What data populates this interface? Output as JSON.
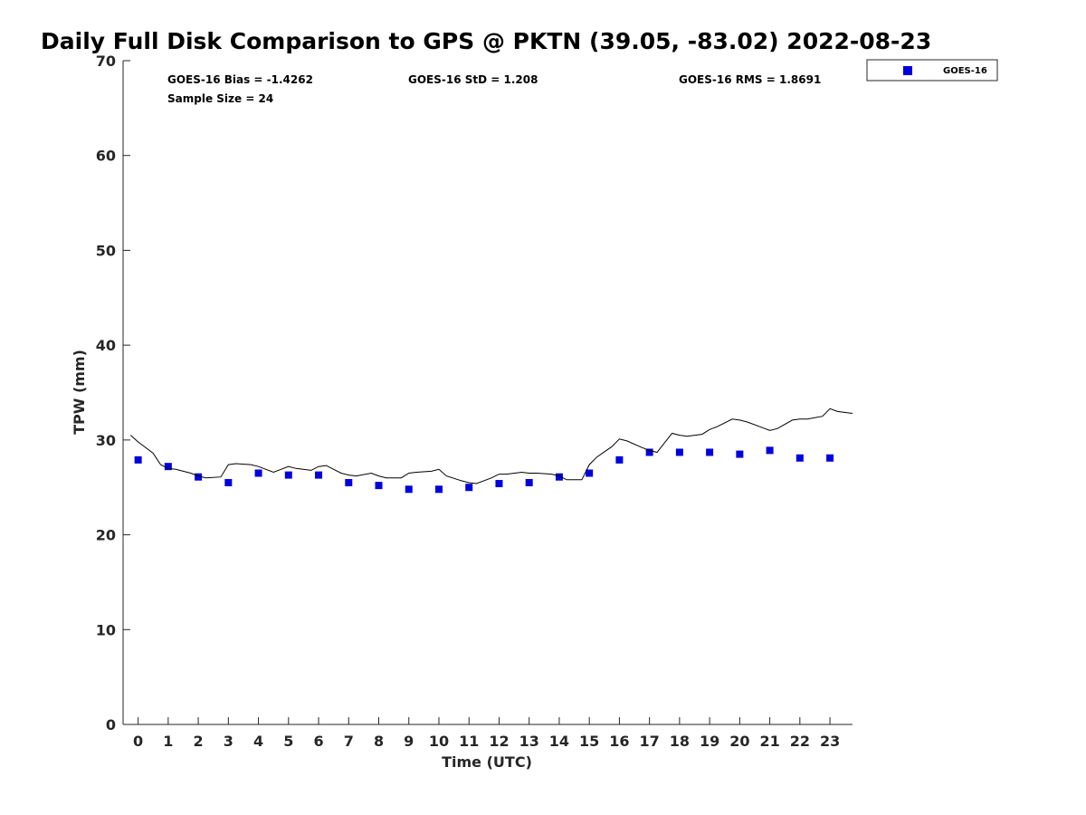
{
  "chart_data": {
    "type": "scatter",
    "title": "Daily Full Disk Comparison to GPS @ PKTN (39.05, -83.02) 2022-08-23",
    "xlabel": "Time (UTC)",
    "ylabel": "TPW (mm)",
    "xlim": [
      -0.5,
      23.75
    ],
    "ylim": [
      0,
      70
    ],
    "x_ticks": [
      0,
      1,
      2,
      3,
      4,
      5,
      6,
      7,
      8,
      9,
      10,
      11,
      12,
      13,
      14,
      15,
      16,
      17,
      18,
      19,
      20,
      21,
      22,
      23
    ],
    "y_ticks": [
      0,
      10,
      20,
      30,
      40,
      50,
      60,
      70
    ],
    "grid": false,
    "legend_position": "top-right outside",
    "stats": {
      "bias": "GOES-16 Bias = -1.4262",
      "std": "GOES-16 StD = 1.208",
      "rms": "GOES-16 RMS = 1.8691",
      "sample": "Sample Size = 24"
    },
    "series": [
      {
        "name": "GOES-16",
        "marker": "square",
        "color": "#0000dd",
        "x": [
          0,
          1,
          2,
          3,
          4,
          5,
          6,
          7,
          8,
          9,
          10,
          11,
          12,
          13,
          14,
          15,
          16,
          17,
          18,
          19,
          20,
          21,
          22,
          23
        ],
        "y": [
          27.9,
          27.2,
          26.1,
          25.5,
          26.5,
          26.3,
          26.3,
          25.5,
          25.2,
          24.8,
          24.8,
          25.0,
          25.4,
          25.5,
          26.1,
          26.5,
          27.9,
          28.7,
          28.7,
          28.7,
          28.5,
          28.9,
          28.1,
          28.1
        ]
      },
      {
        "marker": "line",
        "color": "#000000",
        "x": [
          -0.25,
          0.0,
          0.5,
          0.75,
          1.0,
          1.25,
          1.75,
          2.0,
          2.25,
          2.75,
          3.0,
          3.25,
          3.75,
          4.0,
          4.5,
          4.75,
          5.0,
          5.25,
          5.75,
          6.0,
          6.25,
          6.75,
          7.0,
          7.25,
          7.75,
          8.0,
          8.25,
          8.75,
          9.0,
          9.25,
          9.75,
          10.0,
          10.25,
          10.75,
          11.0,
          11.25,
          11.75,
          12.0,
          12.25,
          12.75,
          13.0,
          13.25,
          13.75,
          14.0,
          14.25,
          14.75,
          15.0,
          15.25,
          15.75,
          16.0,
          16.25,
          16.75,
          17.0,
          17.25,
          17.75,
          18.0,
          18.25,
          18.75,
          19.0,
          19.25,
          19.75,
          20.0,
          20.25,
          20.75,
          21.0,
          21.25,
          21.75,
          22.0,
          22.25,
          22.75,
          23.0,
          23.25,
          23.75
        ],
        "y": [
          30.5,
          29.8,
          28.6,
          27.4,
          27.0,
          26.9,
          26.5,
          26.2,
          26.0,
          26.1,
          27.4,
          27.5,
          27.4,
          27.2,
          26.6,
          26.9,
          27.2,
          27.0,
          26.8,
          27.2,
          27.3,
          26.5,
          26.3,
          26.2,
          26.5,
          26.2,
          26.0,
          26.0,
          26.5,
          26.6,
          26.7,
          26.9,
          26.2,
          25.7,
          25.5,
          25.4,
          26.0,
          26.4,
          26.4,
          26.6,
          26.5,
          26.5,
          26.4,
          26.2,
          25.8,
          25.8,
          27.4,
          28.2,
          29.3,
          30.1,
          29.9,
          29.2,
          28.9,
          28.7,
          30.7,
          30.5,
          30.4,
          30.6,
          31.1,
          31.4,
          32.2,
          32.1,
          31.9,
          31.3,
          31.0,
          31.2,
          32.1,
          32.2,
          32.2,
          32.5,
          33.3,
          33.0,
          32.8
        ]
      }
    ]
  }
}
